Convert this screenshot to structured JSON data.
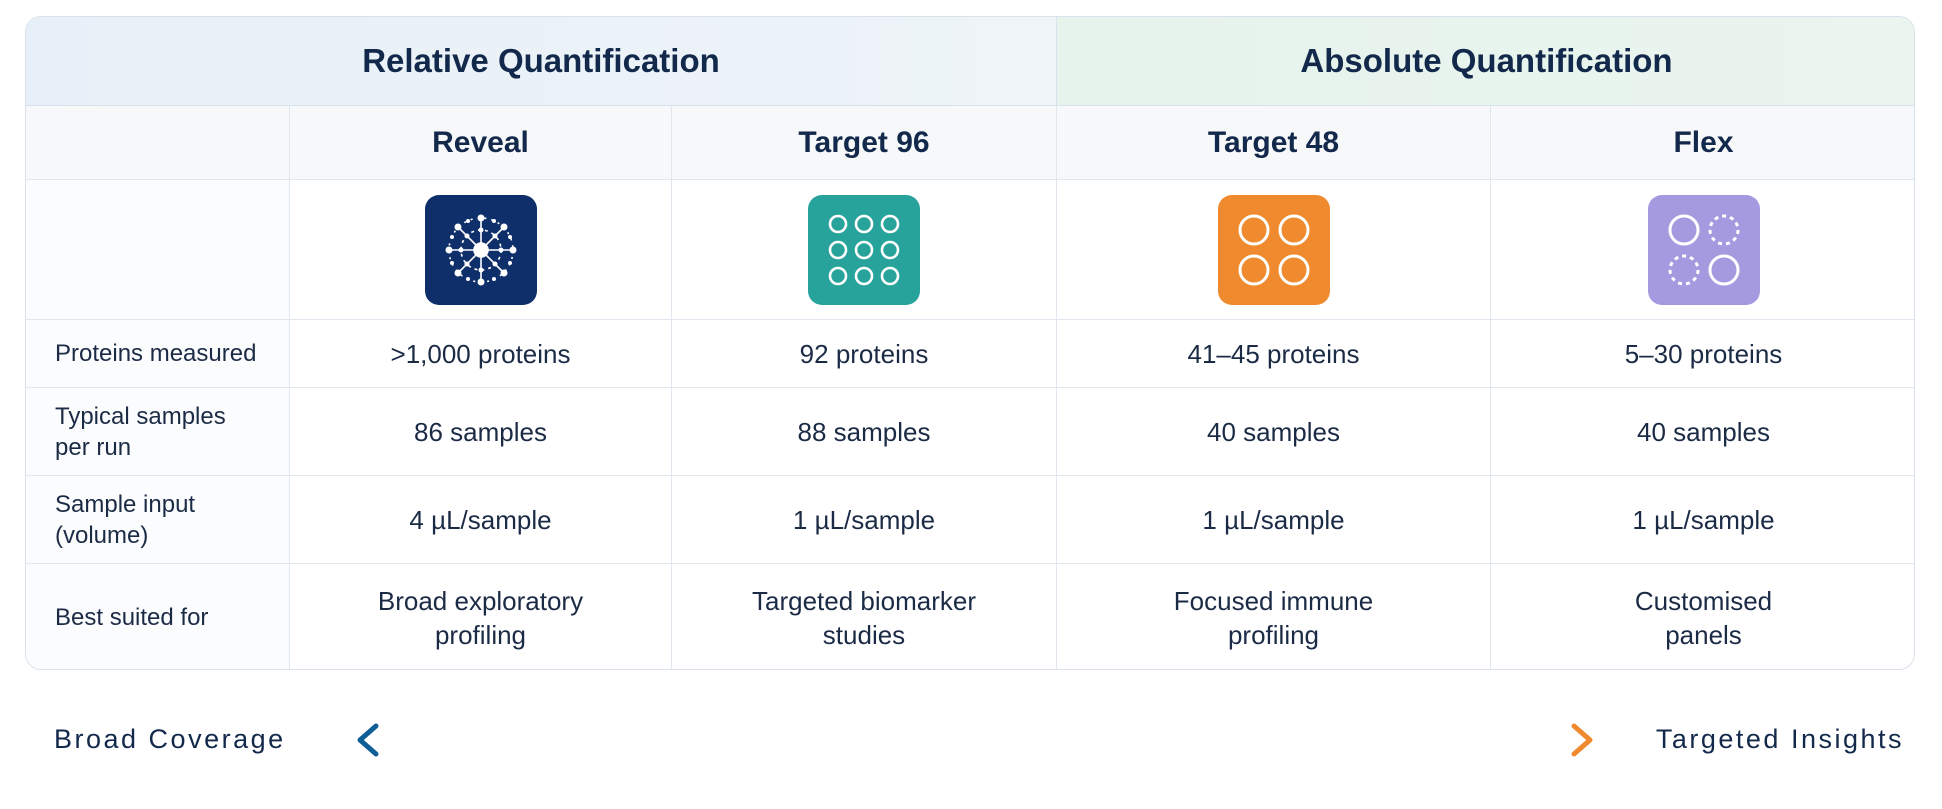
{
  "groups": {
    "relative": "Relative Quantification",
    "absolute": "Absolute Quantification"
  },
  "products": [
    {
      "name": "Reveal",
      "icon": "network-burst-icon",
      "color": "#0f2f6b"
    },
    {
      "name": "Target 96",
      "icon": "nine-dot-grid-icon",
      "color": "#27a39c"
    },
    {
      "name": "Target 48",
      "icon": "four-circle-grid-icon",
      "color": "#ef8a2f"
    },
    {
      "name": "Flex",
      "icon": "mixed-circle-grid-icon",
      "color": "#a59ae0"
    }
  ],
  "rows": [
    {
      "label": "Proteins measured",
      "values": [
        ">1,000 proteins",
        "92 proteins",
        "41–45 proteins",
        "5–30 proteins"
      ]
    },
    {
      "label": "Typical samples per run",
      "values": [
        "86 samples",
        "88 samples",
        "40 samples",
        "40 samples"
      ]
    },
    {
      "label": "Sample input (volume)",
      "values": [
        "4 µL/sample",
        "1 µL/sample",
        "1 µL/sample",
        "1 µL/sample"
      ]
    },
    {
      "label": "Best suited for",
      "values": [
        "Broad exploratory profiling",
        "Targeted biomarker studies",
        "Focused immune profiling",
        "Customised panels"
      ]
    }
  ],
  "scale": {
    "left": "Broad Coverage",
    "right": "Targeted Insights",
    "gradient_start": "#0f5f96",
    "gradient_mid": "#2aa6a0",
    "gradient_end": "#ef8a2f"
  }
}
